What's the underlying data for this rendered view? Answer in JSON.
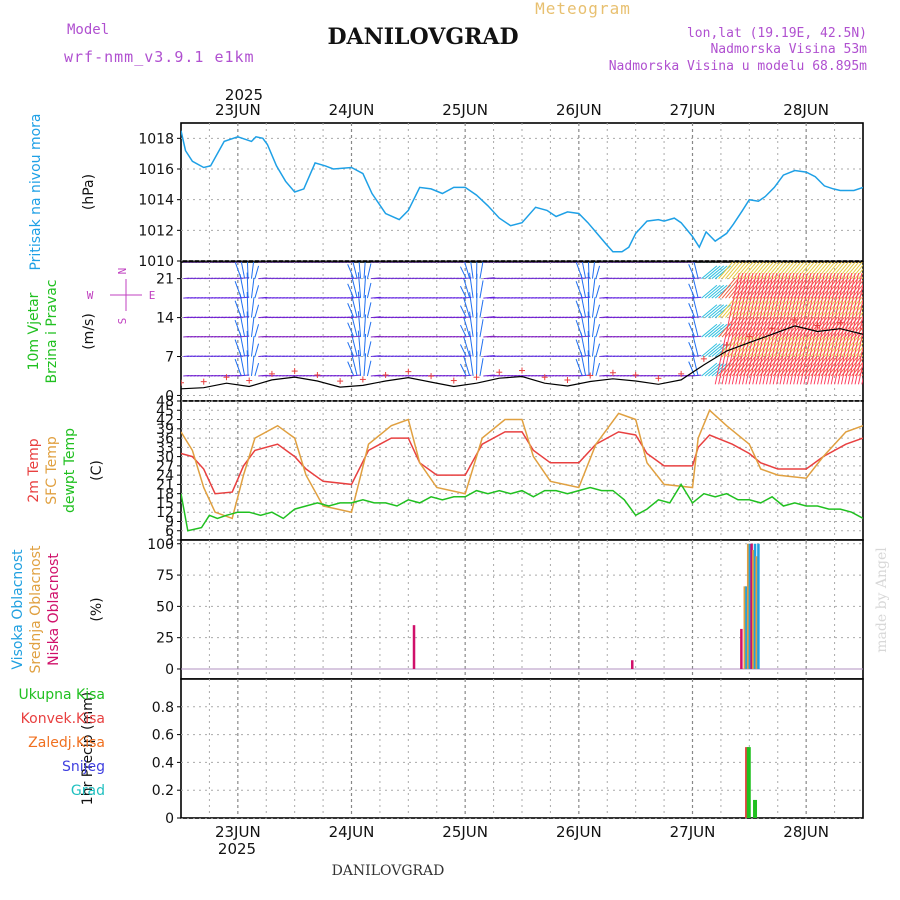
{
  "header": {
    "model_label": "Model",
    "model_name": "wrf-nmm_v3.9.1 e1km",
    "station": "DANILOVGRAD",
    "product": "Meteogram",
    "lonlat": "lon,lat (19.19E, 42.5N)",
    "altitude": "Nadmorska Visina 53m",
    "model_altitude": "Nadmorska Visina u modelu 68.895m",
    "year": "2025",
    "footer_station": "DANILOVGRAD",
    "credit": "made by Angel"
  },
  "colors": {
    "pressure": "#1ea0e6",
    "temp2m": "#e84040",
    "sfc_temp": "#e0a040",
    "dewpoint": "#20c020",
    "high_cloud": "#20a0e0",
    "mid_cloud": "#e0a040",
    "low_cloud": "#d0106a",
    "total_precip": "#20c020",
    "conv_precip": "#e84040",
    "frozen_precip": "#f07020",
    "snow": "#4040e0",
    "hail": "#20c0c0",
    "wind_label": "#20c020",
    "wind_compass": "#c040c0"
  },
  "time_axis": {
    "day_labels": [
      "23JUN",
      "24JUN",
      "25JUN",
      "26JUN",
      "27JUN",
      "28JUN"
    ],
    "day_positions": [
      0.5,
      1.5,
      2.5,
      3.5,
      4.5,
      5.5
    ],
    "range_days": [
      0,
      6
    ]
  },
  "chart_data": [
    {
      "type": "line",
      "panel": "pressure",
      "ylabel_words": [
        "Pritisak na nivou mora"
      ],
      "unit": "(hPa)",
      "ylim": [
        1010,
        1019
      ],
      "yticks": [
        1010,
        1012,
        1014,
        1016,
        1018
      ],
      "series": [
        {
          "x": [
            0.0,
            0.04,
            0.1,
            0.2,
            0.26,
            0.38,
            0.5,
            0.62,
            0.66,
            0.72,
            0.76,
            0.84,
            0.92,
            1.0,
            1.08,
            1.18,
            1.27,
            1.34,
            1.5,
            1.6,
            1.68,
            1.8,
            1.92,
            2.0,
            2.1,
            2.2,
            2.3,
            2.4,
            2.5,
            2.6,
            2.7,
            2.8,
            2.9,
            3.0,
            3.12,
            3.22,
            3.3,
            3.4,
            3.5,
            3.58,
            3.66,
            3.74,
            3.8,
            3.88,
            3.94,
            4.0,
            4.1,
            4.2,
            4.25,
            4.34,
            4.4,
            4.5,
            4.56,
            4.62,
            4.7,
            4.8,
            4.86,
            4.94,
            5.0,
            5.08,
            5.14,
            5.22,
            5.3,
            5.4,
            5.5,
            5.58,
            5.66,
            5.74,
            5.8,
            5.86,
            5.92,
            6.0
          ],
          "y": [
            1018.5,
            1017.2,
            1016.5,
            1016.1,
            1016.2,
            1017.8,
            1018.1,
            1017.8,
            1018.1,
            1018.0,
            1017.6,
            1016.2,
            1015.2,
            1014.5,
            1014.7,
            1016.4,
            1016.2,
            1016.0,
            1016.1,
            1015.7,
            1014.4,
            1013.1,
            1012.7,
            1013.3,
            1014.8,
            1014.7,
            1014.4,
            1014.8,
            1014.8,
            1014.3,
            1013.6,
            1012.8,
            1012.3,
            1012.5,
            1013.5,
            1013.3,
            1012.9,
            1013.2,
            1013.1,
            1012.5,
            1011.8,
            1011.1,
            1010.6,
            1010.6,
            1010.9,
            1011.8,
            1012.6,
            1012.7,
            1012.6,
            1012.8,
            1012.5,
            1011.6,
            1010.9,
            1011.9,
            1011.3,
            1011.8,
            1012.4,
            1013.3,
            1014.0,
            1013.9,
            1014.2,
            1014.8,
            1015.6,
            1015.9,
            1015.8,
            1015.5,
            1014.9,
            1014.7,
            1014.6,
            1014.6,
            1014.6,
            1014.8
          ]
        }
      ]
    },
    {
      "type": "vector",
      "panel": "wind",
      "ylabel_words": [
        "10m Vjetar",
        "Brzina i Pravac"
      ],
      "unit": "(m/s)",
      "compass": {
        "n": "N",
        "s": "S",
        "e": "E",
        "w": "W"
      },
      "ylim": [
        -1,
        24
      ],
      "yticks": [
        0,
        7,
        14,
        21
      ],
      "rows": [
        3.5,
        7,
        10.5,
        14,
        17.5,
        21,
        24
      ],
      "speed_series": {
        "x": [
          0.0,
          0.2,
          0.4,
          0.6,
          0.8,
          1.0,
          1.2,
          1.4,
          1.6,
          1.8,
          2.0,
          2.2,
          2.4,
          2.6,
          2.8,
          3.0,
          3.2,
          3.4,
          3.6,
          3.8,
          4.0,
          4.2,
          4.4,
          4.6,
          4.8,
          5.0,
          5.2,
          5.4,
          5.6,
          5.8,
          6.0
        ],
        "y": [
          1.2,
          1.4,
          2.2,
          1.6,
          2.8,
          3.3,
          2.6,
          1.5,
          1.8,
          2.6,
          3.2,
          2.4,
          1.6,
          2.2,
          3.1,
          3.4,
          2.2,
          1.7,
          2.5,
          3.0,
          2.6,
          2.0,
          2.8,
          5.5,
          8.0,
          9.5,
          11.0,
          12.5,
          11.5,
          12.0,
          11.0
        ]
      }
    },
    {
      "type": "line",
      "panel": "temperature",
      "ylabel_words": [
        "2m Temp",
        "SFC Temp",
        "dewpt Temp"
      ],
      "unit": "(C)",
      "ylim": [
        3,
        48
      ],
      "yticks": [
        3,
        6,
        9,
        12,
        15,
        18,
        21,
        24,
        27,
        30,
        33,
        36,
        39,
        42,
        45,
        48
      ],
      "series": [
        {
          "name": "2m Temp",
          "x": [
            0.0,
            0.1,
            0.2,
            0.3,
            0.45,
            0.55,
            0.65,
            0.85,
            1.0,
            1.1,
            1.25,
            1.5,
            1.65,
            1.85,
            2.0,
            2.1,
            2.25,
            2.5,
            2.65,
            2.85,
            3.0,
            3.1,
            3.25,
            3.5,
            3.65,
            3.85,
            4.0,
            4.1,
            4.25,
            4.5,
            4.55,
            4.65,
            4.85,
            5.0,
            5.1,
            5.25,
            5.5,
            5.65,
            5.85,
            6.0
          ],
          "y": [
            31,
            30,
            26,
            18,
            18.5,
            27,
            32,
            34,
            30,
            26,
            22,
            21,
            32,
            36,
            36,
            28,
            24,
            24,
            34,
            38,
            38,
            32,
            28,
            28,
            34,
            38,
            37,
            31,
            27,
            27,
            33,
            37,
            34,
            31,
            28,
            26,
            26,
            30,
            34,
            36
          ]
        },
        {
          "name": "SFC Temp",
          "x": [
            0.0,
            0.1,
            0.2,
            0.3,
            0.45,
            0.55,
            0.65,
            0.85,
            1.0,
            1.1,
            1.25,
            1.5,
            1.65,
            1.85,
            2.0,
            2.1,
            2.25,
            2.5,
            2.65,
            2.85,
            3.0,
            3.1,
            3.25,
            3.5,
            3.65,
            3.85,
            4.0,
            4.1,
            4.25,
            4.5,
            4.55,
            4.65,
            4.8,
            5.0,
            5.1,
            5.25,
            5.5,
            5.65,
            5.85,
            6.0
          ],
          "y": [
            38,
            32,
            20,
            12,
            10,
            24,
            36,
            40,
            36,
            24,
            14,
            12,
            34,
            40,
            42,
            28,
            20,
            18,
            36,
            42,
            42,
            30,
            22,
            20,
            34,
            44,
            42,
            28,
            21,
            20,
            36,
            45,
            40,
            34,
            26,
            24,
            23,
            30,
            38,
            40
          ]
        },
        {
          "name": "dewpt Temp",
          "x": [
            0.0,
            0.06,
            0.18,
            0.25,
            0.32,
            0.4,
            0.5,
            0.6,
            0.7,
            0.8,
            0.9,
            1.0,
            1.1,
            1.2,
            1.3,
            1.4,
            1.5,
            1.6,
            1.7,
            1.8,
            1.9,
            2.0,
            2.1,
            2.2,
            2.3,
            2.4,
            2.5,
            2.6,
            2.7,
            2.8,
            2.9,
            3.0,
            3.1,
            3.2,
            3.3,
            3.4,
            3.5,
            3.6,
            3.7,
            3.8,
            3.9,
            4.0,
            4.1,
            4.2,
            4.3,
            4.4,
            4.5,
            4.6,
            4.7,
            4.8,
            4.9,
            5.0,
            5.1,
            5.2,
            5.3,
            5.4,
            5.5,
            5.6,
            5.7,
            5.8,
            5.9,
            6.0
          ],
          "y": [
            18,
            6,
            7,
            11,
            10,
            11,
            12,
            12,
            11,
            12,
            10,
            13,
            14,
            15,
            14,
            15,
            15,
            16,
            15,
            15,
            14,
            16,
            15,
            17,
            16,
            17,
            17,
            19,
            18,
            19,
            18,
            19,
            17,
            19,
            19,
            18,
            19,
            20,
            19,
            19,
            16,
            11,
            13,
            16,
            15,
            21,
            15,
            18,
            17,
            18,
            16,
            16,
            15,
            17,
            14,
            15,
            14,
            14,
            13,
            13,
            12,
            10
          ]
        }
      ]
    },
    {
      "type": "bar",
      "panel": "clouds",
      "ylabel_words": [
        "Visoka Oblacnost",
        "Srednja Oblacnost",
        "Niska Oblacnost"
      ],
      "unit": "(%)",
      "ylim": [
        -8,
        103
      ],
      "yticks": [
        0,
        25,
        50,
        75,
        100
      ],
      "bars": [
        {
          "series": "Niska Oblacnost",
          "x": 2.05,
          "value": 35
        },
        {
          "series": "Niska Oblacnost",
          "x": 3.97,
          "value": 7
        },
        {
          "series": "Niska Oblacnost",
          "x": 4.93,
          "value": 32
        },
        {
          "series": "Srednja Oblacnost",
          "x": 4.96,
          "value": 66
        },
        {
          "series": "Visoka Oblacnost",
          "x": 4.975,
          "value": 66
        },
        {
          "series": "Srednja Oblacnost",
          "x": 4.99,
          "value": 100
        },
        {
          "series": "Visoka Oblacnost",
          "x": 5.005,
          "value": 100
        },
        {
          "series": "Niska Oblacnost",
          "x": 5.02,
          "value": 100
        },
        {
          "series": "Srednja Oblacnost",
          "x": 5.035,
          "value": 95
        },
        {
          "series": "Visoka Oblacnost",
          "x": 5.05,
          "value": 100
        },
        {
          "series": "Srednja Oblacnost",
          "x": 5.065,
          "value": 90
        },
        {
          "series": "Visoka Oblacnost",
          "x": 5.08,
          "value": 100
        }
      ]
    },
    {
      "type": "bar",
      "panel": "precip",
      "ylabel_words": [
        "1hr Precip (mm)"
      ],
      "unit": "",
      "legend": [
        "Ukupna Kisa",
        "Konvek.Kisa",
        "Zaledj.Kisa",
        "Snijeg",
        "Grad"
      ],
      "ylim": [
        0,
        1
      ],
      "yticks": [
        0,
        0.2,
        0.4,
        0.6,
        0.8
      ],
      "bars": [
        {
          "series": "Konvek.Kisa",
          "x": 4.98,
          "value": 0.51
        },
        {
          "series": "Ukupna Kisa",
          "x": 4.995,
          "value": 0.51
        },
        {
          "series": "Ukupna Kisa",
          "x": 5.05,
          "value": 0.13
        }
      ]
    }
  ]
}
